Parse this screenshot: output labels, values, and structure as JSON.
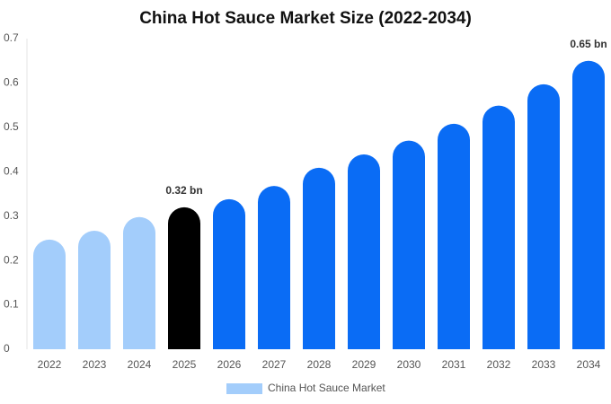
{
  "chart_data": {
    "type": "bar",
    "title": "China Hot Sauce Market Size (2022-2034)",
    "categories": [
      "2022",
      "2023",
      "2024",
      "2025",
      "2026",
      "2027",
      "2028",
      "2029",
      "2030",
      "2031",
      "2032",
      "2033",
      "2034"
    ],
    "series": [
      {
        "name": "China Hot Sauce Market",
        "color": "#a3cdfb",
        "values": [
          0.247,
          0.267,
          0.298,
          0.32,
          0.338,
          0.368,
          0.409,
          0.439,
          0.47,
          0.508,
          0.549,
          0.597,
          0.65
        ],
        "value_labels": [
          null,
          null,
          null,
          "0.32 bn",
          null,
          null,
          null,
          null,
          null,
          null,
          null,
          null,
          "0.65 bn"
        ],
        "colors": [
          "#a3cdfb",
          "#a3cdfb",
          "#a3cdfb",
          "#000000",
          "#0a6cf5",
          "#0a6cf5",
          "#0a6cf5",
          "#0a6cf5",
          "#0a6cf5",
          "#0a6cf5",
          "#0a6cf5",
          "#0a6cf5",
          "#0a6cf5"
        ]
      }
    ],
    "ylim": [
      0,
      0.7
    ],
    "yticks": [
      0,
      0.1,
      0.2,
      0.3,
      0.4,
      0.5,
      0.6,
      0.7
    ],
    "grid": false,
    "legend": "bottom"
  }
}
